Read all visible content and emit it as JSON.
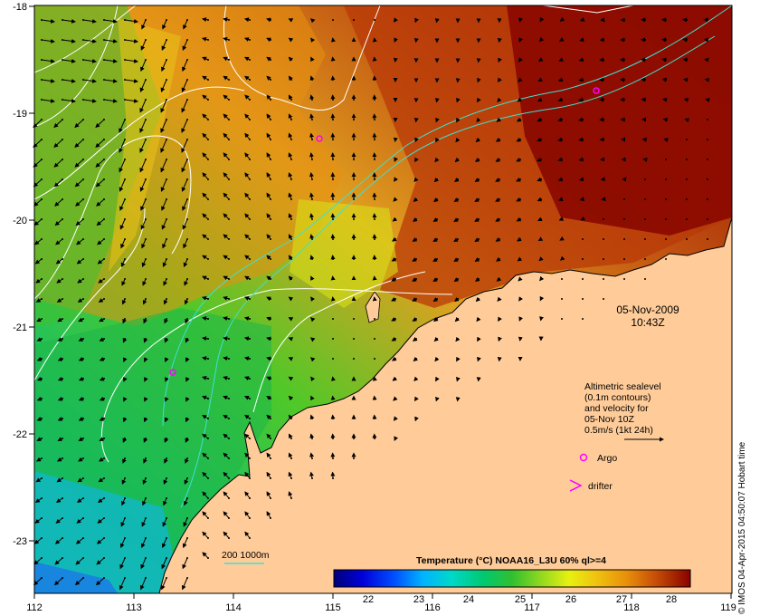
{
  "date": "05-Nov-2009",
  "time": "10:43Z",
  "legend": {
    "line1": "Altimetric sealevel",
    "line2": "(0.1m contours)",
    "line3": "and velocity for",
    "line4": "05-Nov 10Z",
    "line5": "0.5m/s (1kt 24h)",
    "argo": "Argo",
    "drifter": "drifter"
  },
  "isobath_label": "200  1000m",
  "colorbar": {
    "title": "Temperature (°C) NOAA16_L3U 60% ql>=4",
    "ticks": [
      "22",
      "23",
      "24",
      "25",
      "26",
      "27",
      "28"
    ],
    "min": 21.4,
    "max": 28.4,
    "colors": [
      "#00007a",
      "#0000d8",
      "#0050ff",
      "#00b4ff",
      "#00d8c8",
      "#00c870",
      "#30c030",
      "#90d820",
      "#e8f010",
      "#f0c010",
      "#e8900a",
      "#c85008",
      "#a82a00",
      "#8a0000"
    ]
  },
  "axes": {
    "x_ticks": [
      "112",
      "113",
      "114",
      "115",
      "116",
      "117",
      "118",
      "119"
    ],
    "y_ticks": [
      "-18",
      "-19",
      "-20",
      "-21",
      "-22",
      "-23"
    ]
  },
  "colors": {
    "land": "#ffcc99",
    "argo": "#ff00ff",
    "contour": "#ffffff",
    "isobath": "#40e0d0"
  },
  "credit": "© IMOS 04-Apr-2015 04:50:07 Hobart time"
}
